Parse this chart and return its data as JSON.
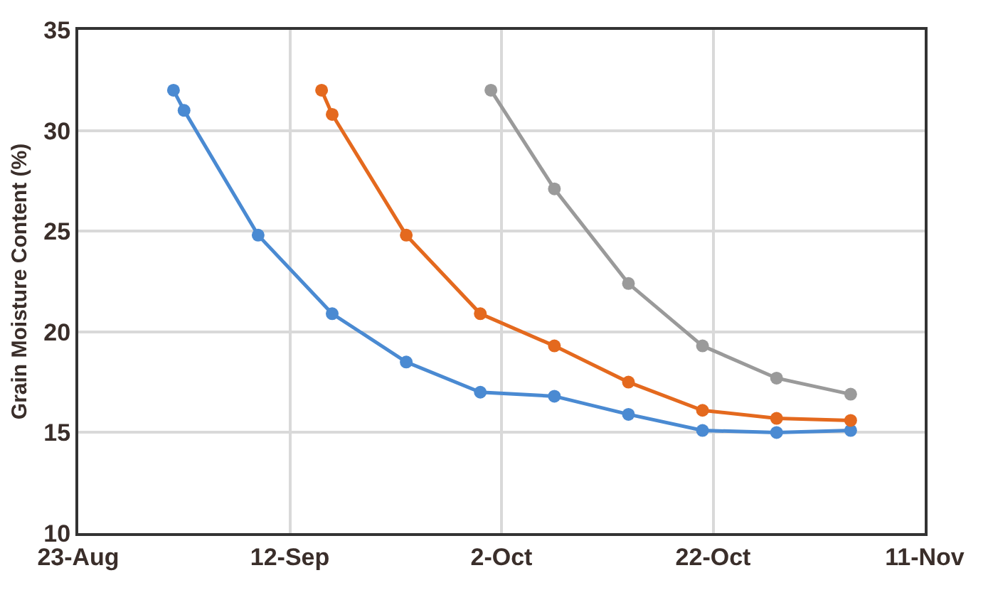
{
  "chart_data": {
    "type": "line",
    "ylabel": "Grain Moisture Content (%)",
    "series": [
      {
        "color": "#4a8ad2",
        "x": [
          "--09-01",
          "--09-02",
          "--09-09",
          "--09-16",
          "--09-23",
          "--09-30",
          "--10-07",
          "--10-14",
          "--10-21",
          "--10-28",
          "--11-04"
        ],
        "values": [
          32.0,
          31.0,
          24.8,
          20.9,
          18.5,
          17.0,
          16.8,
          15.9,
          15.1,
          15.0,
          15.1
        ]
      },
      {
        "color": "#e4691e",
        "x": [
          "--09-15",
          "--09-16",
          "--09-23",
          "--09-30",
          "--10-07",
          "--10-14",
          "--10-21",
          "--10-28",
          "--11-04"
        ],
        "values": [
          32.0,
          30.8,
          24.8,
          20.9,
          19.3,
          17.5,
          16.1,
          15.7,
          15.6
        ]
      },
      {
        "color": "#9a9a9a",
        "x": [
          "--10-01",
          "--10-07",
          "--10-14",
          "--10-21",
          "--10-28",
          "--11-04"
        ],
        "values": [
          32.0,
          27.1,
          22.4,
          19.3,
          17.7,
          16.9
        ]
      }
    ],
    "xlim": [
      "--08-23",
      "--11-11"
    ],
    "xticks": [
      {
        "value": "--08-23",
        "label": "23-Aug"
      },
      {
        "value": "--09-12",
        "label": "12-Sep"
      },
      {
        "value": "--10-02",
        "label": "2-Oct"
      },
      {
        "value": "--10-22",
        "label": "22-Oct"
      },
      {
        "value": "--11-11",
        "label": "11-Nov"
      }
    ],
    "ylim": [
      10,
      35
    ],
    "yticks": [
      10,
      15,
      20,
      25,
      30,
      35
    ],
    "grid": true,
    "marker": "circle",
    "line_style": "solid"
  }
}
